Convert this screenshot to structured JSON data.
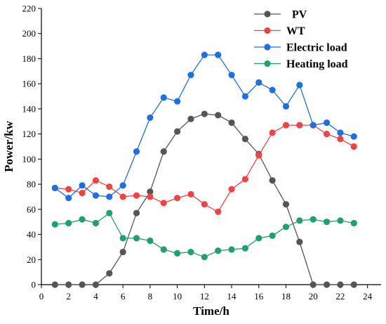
{
  "chart_data": {
    "type": "line",
    "xlabel": "Time/h",
    "ylabel": "Power/kw",
    "xlim": [
      0,
      25
    ],
    "ylim": [
      0,
      220
    ],
    "xticks": [
      0,
      2,
      4,
      6,
      8,
      10,
      12,
      14,
      16,
      18,
      20,
      22,
      24
    ],
    "yticks": [
      0,
      20,
      40,
      60,
      80,
      100,
      120,
      140,
      160,
      180,
      200,
      220
    ],
    "grid": false,
    "legend_position": "top-right",
    "x": [
      1,
      2,
      3,
      4,
      5,
      6,
      7,
      8,
      9,
      10,
      11,
      12,
      13,
      14,
      15,
      16,
      17,
      18,
      19,
      20,
      21,
      22,
      23
    ],
    "series": [
      {
        "name": "PV",
        "color": "#555555",
        "values": [
          0,
          0,
          0,
          0,
          9,
          26,
          57,
          74,
          106,
          122,
          132,
          136,
          135,
          129,
          116,
          104,
          83,
          64,
          34,
          0,
          0,
          0,
          0
        ]
      },
      {
        "name": "WT",
        "color": "#ee4444",
        "values": [
          77,
          76,
          73,
          83,
          78,
          70,
          71,
          70,
          65,
          69,
          72,
          64,
          58,
          76,
          84,
          103,
          121,
          127,
          127,
          127,
          120,
          116,
          110
        ]
      },
      {
        "name": "Electric load",
        "color": "#1f6fe0",
        "values": [
          77,
          69,
          79,
          71,
          70,
          79,
          106,
          133,
          149,
          146,
          167,
          183,
          183,
          167,
          150,
          161,
          155,
          142,
          159,
          127,
          129,
          121,
          118
        ]
      },
      {
        "name": "Heating load",
        "color": "#22a06b",
        "values": [
          48,
          49,
          52,
          49,
          57,
          37,
          37,
          35,
          28,
          25,
          26,
          22,
          27,
          28,
          29,
          37,
          39,
          46,
          51,
          52,
          50,
          51,
          49
        ]
      }
    ]
  }
}
